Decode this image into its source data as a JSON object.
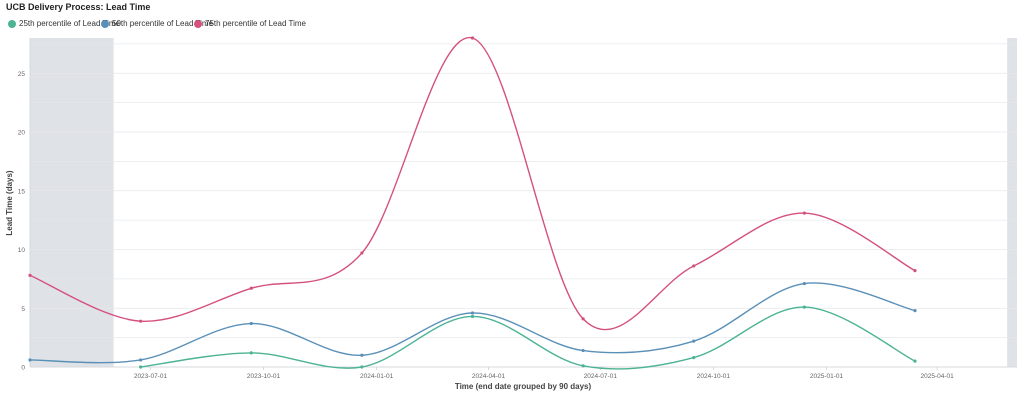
{
  "colors": {
    "p25": "#4cb394",
    "p50": "#5a90b8",
    "p75": "#d4507f",
    "band": "#dfe2e6",
    "grid": "#e6e8eb"
  },
  "chart_data": {
    "type": "line",
    "title": "UCB Delivery Process: Lead Time",
    "xlabel": "Time (end date grouped by 90 days)",
    "ylabel": "Lead Time (days)",
    "ylim": [
      0,
      28
    ],
    "yticks": [
      0,
      5,
      10,
      15,
      20,
      25
    ],
    "xlim": [
      "2023-03-25",
      "2025-06-05"
    ],
    "xticks": [
      "2023-07-01",
      "2023-10-01",
      "2024-01-01",
      "2024-04-01",
      "2024-07-01",
      "2024-10-01",
      "2025-01-01",
      "2025-04-01"
    ],
    "shaded_ranges": [
      [
        "2023-03-25",
        "2023-06-01"
      ],
      [
        "2025-05-28",
        "2025-06-05"
      ]
    ],
    "x": [
      "2023-03-25",
      "2023-06-23",
      "2023-09-21",
      "2023-12-20",
      "2024-03-19",
      "2024-06-17",
      "2024-09-15",
      "2024-12-14",
      "2025-03-14"
    ],
    "series": [
      {
        "name": "25th percentile of Lead Time",
        "color": "#4cb394",
        "values": [
          null,
          0.0,
          1.2,
          0.0,
          4.3,
          0.1,
          0.8,
          5.1,
          0.5
        ]
      },
      {
        "name": "50th percentile of Lead Time",
        "color": "#5a90b8",
        "values": [
          0.6,
          0.6,
          3.7,
          1.0,
          4.6,
          1.4,
          2.2,
          7.1,
          4.8
        ]
      },
      {
        "name": "75th percentile of Lead Time",
        "color": "#d4507f",
        "values": [
          7.8,
          3.9,
          6.7,
          9.7,
          28.0,
          4.1,
          8.6,
          13.1,
          8.2
        ]
      }
    ]
  }
}
